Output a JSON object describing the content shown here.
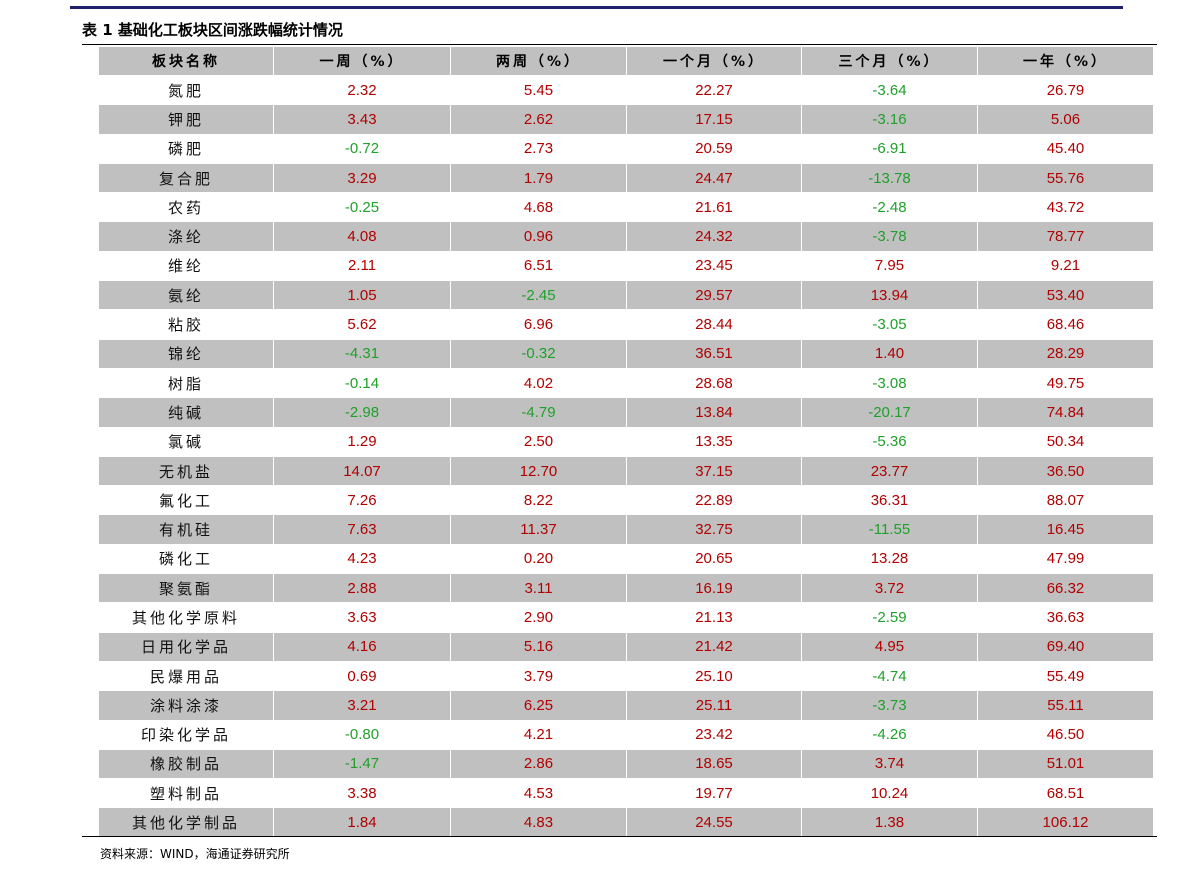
{
  "header": {
    "title": "表 1 基础化工板块区间涨跌幅统计情况"
  },
  "table": {
    "columns": [
      "板块名称",
      "一周（%）",
      "两周（%）",
      "一个月（%）",
      "三个月（%）",
      "一年（%）"
    ],
    "rows": [
      [
        "氮肥",
        "2.32",
        "5.45",
        "22.27",
        "-3.64",
        "26.79"
      ],
      [
        "钾肥",
        "3.43",
        "2.62",
        "17.15",
        "-3.16",
        "5.06"
      ],
      [
        "磷肥",
        "-0.72",
        "2.73",
        "20.59",
        "-6.91",
        "45.40"
      ],
      [
        "复合肥",
        "3.29",
        "1.79",
        "24.47",
        "-13.78",
        "55.76"
      ],
      [
        "农药",
        "-0.25",
        "4.68",
        "21.61",
        "-2.48",
        "43.72"
      ],
      [
        "涤纶",
        "4.08",
        "0.96",
        "24.32",
        "-3.78",
        "78.77"
      ],
      [
        "维纶",
        "2.11",
        "6.51",
        "23.45",
        "7.95",
        "9.21"
      ],
      [
        "氨纶",
        "1.05",
        "-2.45",
        "29.57",
        "13.94",
        "53.40"
      ],
      [
        "粘胶",
        "5.62",
        "6.96",
        "28.44",
        "-3.05",
        "68.46"
      ],
      [
        "锦纶",
        "-4.31",
        "-0.32",
        "36.51",
        "1.40",
        "28.29"
      ],
      [
        "树脂",
        "-0.14",
        "4.02",
        "28.68",
        "-3.08",
        "49.75"
      ],
      [
        "纯碱",
        "-2.98",
        "-4.79",
        "13.84",
        "-20.17",
        "74.84"
      ],
      [
        "氯碱",
        "1.29",
        "2.50",
        "13.35",
        "-5.36",
        "50.34"
      ],
      [
        "无机盐",
        "14.07",
        "12.70",
        "37.15",
        "23.77",
        "36.50"
      ],
      [
        "氟化工",
        "7.26",
        "8.22",
        "22.89",
        "36.31",
        "88.07"
      ],
      [
        "有机硅",
        "7.63",
        "11.37",
        "32.75",
        "-11.55",
        "16.45"
      ],
      [
        "磷化工",
        "4.23",
        "0.20",
        "20.65",
        "13.28",
        "47.99"
      ],
      [
        "聚氨酯",
        "2.88",
        "3.11",
        "16.19",
        "3.72",
        "66.32"
      ],
      [
        "其他化学原料",
        "3.63",
        "2.90",
        "21.13",
        "-2.59",
        "36.63"
      ],
      [
        "日用化学品",
        "4.16",
        "5.16",
        "21.42",
        "4.95",
        "69.40"
      ],
      [
        "民爆用品",
        "0.69",
        "3.79",
        "25.10",
        "-4.74",
        "55.49"
      ],
      [
        "涂料涂漆",
        "3.21",
        "6.25",
        "25.11",
        "-3.73",
        "55.11"
      ],
      [
        "印染化学品",
        "-0.80",
        "4.21",
        "23.42",
        "-4.26",
        "46.50"
      ],
      [
        "橡胶制品",
        "-1.47",
        "2.86",
        "18.65",
        "3.74",
        "51.01"
      ],
      [
        "塑料制品",
        "3.38",
        "4.53",
        "19.77",
        "10.24",
        "68.51"
      ],
      [
        "其他化学制品",
        "1.84",
        "4.83",
        "24.55",
        "1.38",
        "106.12"
      ]
    ]
  },
  "footer": {
    "source": "资料来源：WIND，海通证券研究所"
  }
}
